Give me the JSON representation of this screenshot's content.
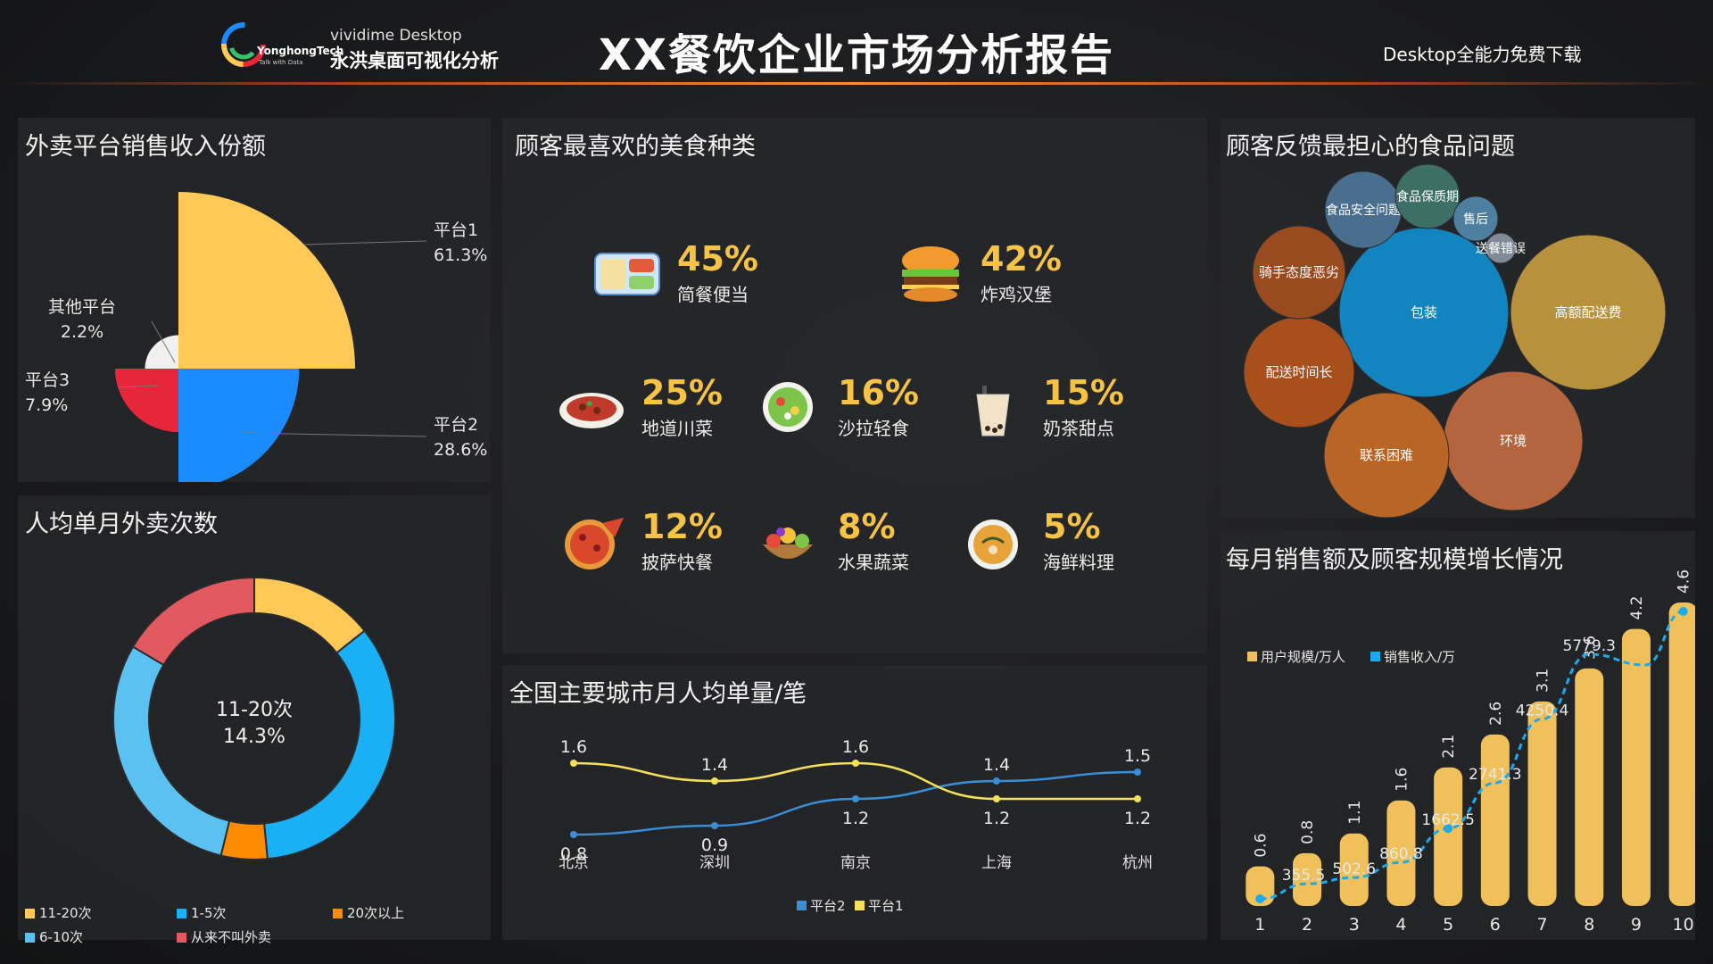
{
  "header": {
    "title": "XX餐饮企业市场分析报告",
    "logo_brand": "YonghongTech",
    "logo_tagline": "Talk with Data",
    "logo_line1": "vividime Desktop",
    "logo_line2": "永洪桌面可视化分析",
    "download_text": "Desktop全能力免费下载"
  },
  "colors": {
    "yellow": "#fec956",
    "blue": "#1a8cff",
    "red": "#e8263a",
    "cyan": "#1ab0f5",
    "light_blue": "#5ac1f0",
    "orange": "#ff8c00",
    "rose": "#e25a5f",
    "bar_gold": "#f0c05a",
    "line_blue": "#1aaaee",
    "city_yellow": "#f5e05a",
    "city_blue": "#3a8ed6"
  },
  "panels": {
    "platform_share": "外卖平台销售收入份额",
    "monthly_orders": "人均单月外卖次数",
    "favorite_food": "顾客最喜欢的美食种类",
    "city_orders": "全国主要城市月人均单量/笔",
    "food_concerns": "顾客反馈最担心的食品问题",
    "growth": "每月销售额及顾客规模增长情况"
  },
  "chart_data": [
    {
      "id": "platform_share",
      "type": "pie",
      "variant": "rose",
      "slices": [
        {
          "label": "平台1",
          "value": 61.3,
          "value_text": "61.3%",
          "color": "#fec956"
        },
        {
          "label": "平台2",
          "value": 28.6,
          "value_text": "28.6%",
          "color": "#1a8cff"
        },
        {
          "label": "平台3",
          "value": 7.9,
          "value_text": "7.9%",
          "color": "#e8263a"
        },
        {
          "label": "其他平台",
          "value": 2.2,
          "value_text": "2.2%",
          "color": "#f0f0f0"
        }
      ]
    },
    {
      "id": "monthly_orders",
      "type": "pie",
      "variant": "donut",
      "center_label": "11-20次",
      "center_value": "14.3%",
      "slices": [
        {
          "label": "11-20次",
          "value": 14.3,
          "color": "#fec956"
        },
        {
          "label": "1-5次",
          "value": 34.2,
          "color": "#1ab0f5"
        },
        {
          "label": "20次以上",
          "value": 5.3,
          "color": "#ff8c00"
        },
        {
          "label": "6-10次",
          "value": 29.7,
          "color": "#5ac1f0"
        },
        {
          "label": "从来不叫外卖",
          "value": 16.5,
          "color": "#e25a5f"
        }
      ],
      "legend_position": "bottom"
    },
    {
      "id": "favorite_food",
      "type": "table",
      "items": [
        {
          "percent": "45%",
          "name": "简餐便当",
          "icon": "bento-box-icon"
        },
        {
          "percent": "42%",
          "name": "炸鸡汉堡",
          "icon": "burger-icon"
        },
        {
          "percent": "25%",
          "name": "地道川菜",
          "icon": "sichuan-dish-icon"
        },
        {
          "percent": "16%",
          "name": "沙拉轻食",
          "icon": "salad-icon"
        },
        {
          "percent": "15%",
          "name": "奶茶甜点",
          "icon": "milk-tea-icon"
        },
        {
          "percent": "12%",
          "name": "披萨快餐",
          "icon": "pizza-icon"
        },
        {
          "percent": "8%",
          "name": "水果蔬菜",
          "icon": "fruit-basket-icon"
        },
        {
          "percent": "5%",
          "name": "海鲜料理",
          "icon": "seafood-soup-icon"
        }
      ]
    },
    {
      "id": "city_orders",
      "type": "line",
      "categories": [
        "北京",
        "深圳",
        "南京",
        "上海",
        "杭州"
      ],
      "series": [
        {
          "name": "平台2",
          "values": [
            0.8,
            0.9,
            1.2,
            1.4,
            1.5
          ],
          "color": "#3a8ed6"
        },
        {
          "name": "平台1",
          "values": [
            1.6,
            1.4,
            1.6,
            1.2,
            1.2
          ],
          "color": "#f5e05a"
        }
      ],
      "ylim": [
        0.6,
        1.8
      ],
      "legend_position": "bottom"
    },
    {
      "id": "food_concerns",
      "type": "scatter",
      "variant": "packed-bubble",
      "bubbles": [
        {
          "label": "包装",
          "color": "#1284c0"
        },
        {
          "label": "高额配送费",
          "color": "#b8913d"
        },
        {
          "label": "环境",
          "color": "#b5653d"
        },
        {
          "label": "联系困难",
          "color": "#b86526"
        },
        {
          "label": "配送时间长",
          "color": "#a84f1c"
        },
        {
          "label": "骑手态度恶劣",
          "color": "#9a4a1f"
        },
        {
          "label": "食品安全问题",
          "color": "#4a6f8e"
        },
        {
          "label": "食品保质期",
          "color": "#3d6f66"
        },
        {
          "label": "售后",
          "color": "#4f7fa0"
        },
        {
          "label": "送餐错误",
          "color": "#7f8c98"
        }
      ]
    },
    {
      "id": "growth",
      "type": "bar",
      "categories": [
        "1",
        "2",
        "3",
        "4",
        "5",
        "6",
        "7",
        "8",
        "9",
        "10"
      ],
      "series": [
        {
          "name": "用户规模/万人",
          "type": "bar",
          "values": [
            0.6,
            0.8,
            1.1,
            1.6,
            2.1,
            2.6,
            3.1,
            3.6,
            4.2,
            4.6
          ],
          "color": "#f0c05a"
        },
        {
          "name": "销售收入/万",
          "type": "line",
          "values": [
            null,
            355.5,
            502.6,
            860.8,
            1662.5,
            2741.3,
            4250.4,
            5779.3,
            null,
            null
          ],
          "color": "#1aaaee"
        }
      ],
      "legend_position": "top-left"
    }
  ]
}
